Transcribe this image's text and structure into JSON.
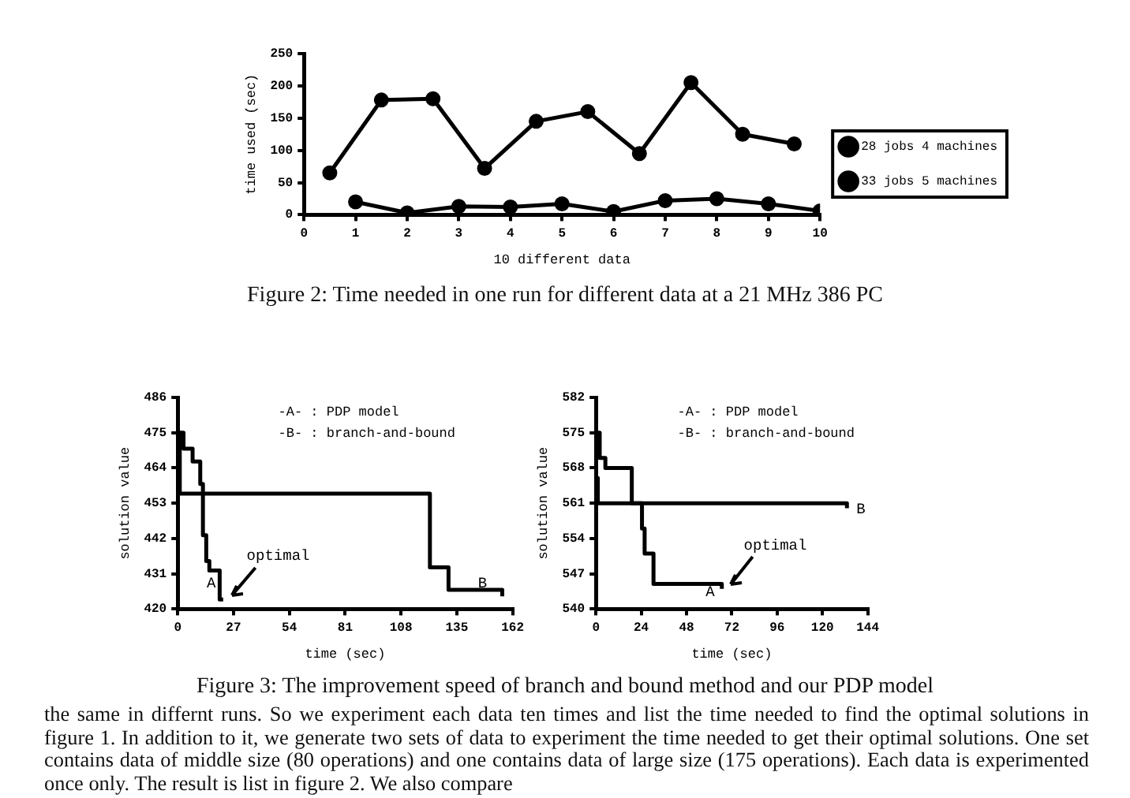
{
  "chart_data": [
    {
      "type": "line",
      "subtitle": "Figure 2: Time needed in one run for different data at a 21 MHz 386 PC",
      "xlabel": "10 different data",
      "ylabel": "time used (sec)",
      "xlim": [
        0,
        10
      ],
      "xticks": [
        0,
        1,
        2,
        3,
        4,
        5,
        6,
        7,
        8,
        9,
        10
      ],
      "ylim": [
        0,
        250
      ],
      "yticks": [
        0,
        50,
        100,
        150,
        200,
        250
      ],
      "marker": "circle",
      "legend": "right",
      "series": [
        {
          "name": "28 jobs 4 machines",
          "color": "#000000",
          "x": [
            0.5,
            1.5,
            2.5,
            3.5,
            4.5,
            5.5,
            6.5,
            7.5,
            8.5,
            9.5
          ],
          "values": [
            65,
            178,
            180,
            72,
            145,
            160,
            95,
            205,
            125,
            110
          ]
        },
        {
          "name": "33 jobs 5 machines",
          "color": "#000000",
          "x": [
            1,
            2,
            3,
            4,
            5,
            6,
            7,
            8,
            9,
            10
          ],
          "values": [
            20,
            3,
            13,
            12,
            17,
            5,
            22,
            25,
            17,
            6
          ]
        }
      ]
    },
    {
      "type": "step",
      "xlabel": "time (sec)",
      "ylabel": "solution value",
      "xlim": [
        0,
        162
      ],
      "xticks": [
        0,
        27,
        54,
        81,
        108,
        135,
        162
      ],
      "ylim": [
        420,
        486
      ],
      "yticks": [
        420,
        431,
        442,
        453,
        464,
        475,
        486
      ],
      "annotations": [
        "-A- : PDP model",
        "-B- : branch-and-bound",
        "A",
        "B",
        "optimal"
      ],
      "series": [
        {
          "color": "#000000",
          "x": [
            0,
            2.8,
            7.2,
            10.9,
            12.2,
            13.8,
            15.3,
            20.3,
            22
          ],
          "values": [
            475,
            470,
            466,
            459,
            443,
            435,
            432,
            423,
            423
          ]
        },
        {
          "color": "#000000",
          "x": [
            0,
            1,
            122,
            131,
            157
          ],
          "values": [
            475,
            456,
            433,
            426,
            424
          ]
        }
      ]
    },
    {
      "type": "step",
      "subtitle": "Figure 3: The improvement speed of branch and bound method and our PDP model",
      "xlabel": "time (sec)",
      "ylabel": "solution value",
      "xlim": [
        0,
        144
      ],
      "xticks": [
        0,
        24,
        48,
        72,
        96,
        120,
        144
      ],
      "ylim": [
        540,
        582
      ],
      "yticks": [
        540,
        547,
        554,
        561,
        568,
        575,
        582
      ],
      "annotations": [
        "-A- : PDP model",
        "-B- : branch-and-bound",
        "A",
        "B",
        "optimal"
      ],
      "series": [
        {
          "color": "#000000",
          "x": [
            0,
            2,
            5,
            19,
            24.4,
            25.8,
            30.5,
            66.7
          ],
          "values": [
            575,
            570,
            568,
            561,
            556,
            551,
            545,
            544
          ]
        },
        {
          "color": "#000000",
          "x": [
            0,
            1,
            133
          ],
          "values": [
            566,
            561,
            560
          ]
        }
      ]
    },
    {
      "type": "other",
      "annotations": [
        "the same in differnt runs. So we experiment each data ten times and list the time needed to find the optimal solutions in figure 1. In addition to it, we generate two sets of data to experiment the time needed to get their optimal solutions. One set contains data of middle size (80 operations) and one contains data of large size (175 operations). Each data is experimented once only. The result is list in figure 2. We also compare"
      ]
    }
  ]
}
